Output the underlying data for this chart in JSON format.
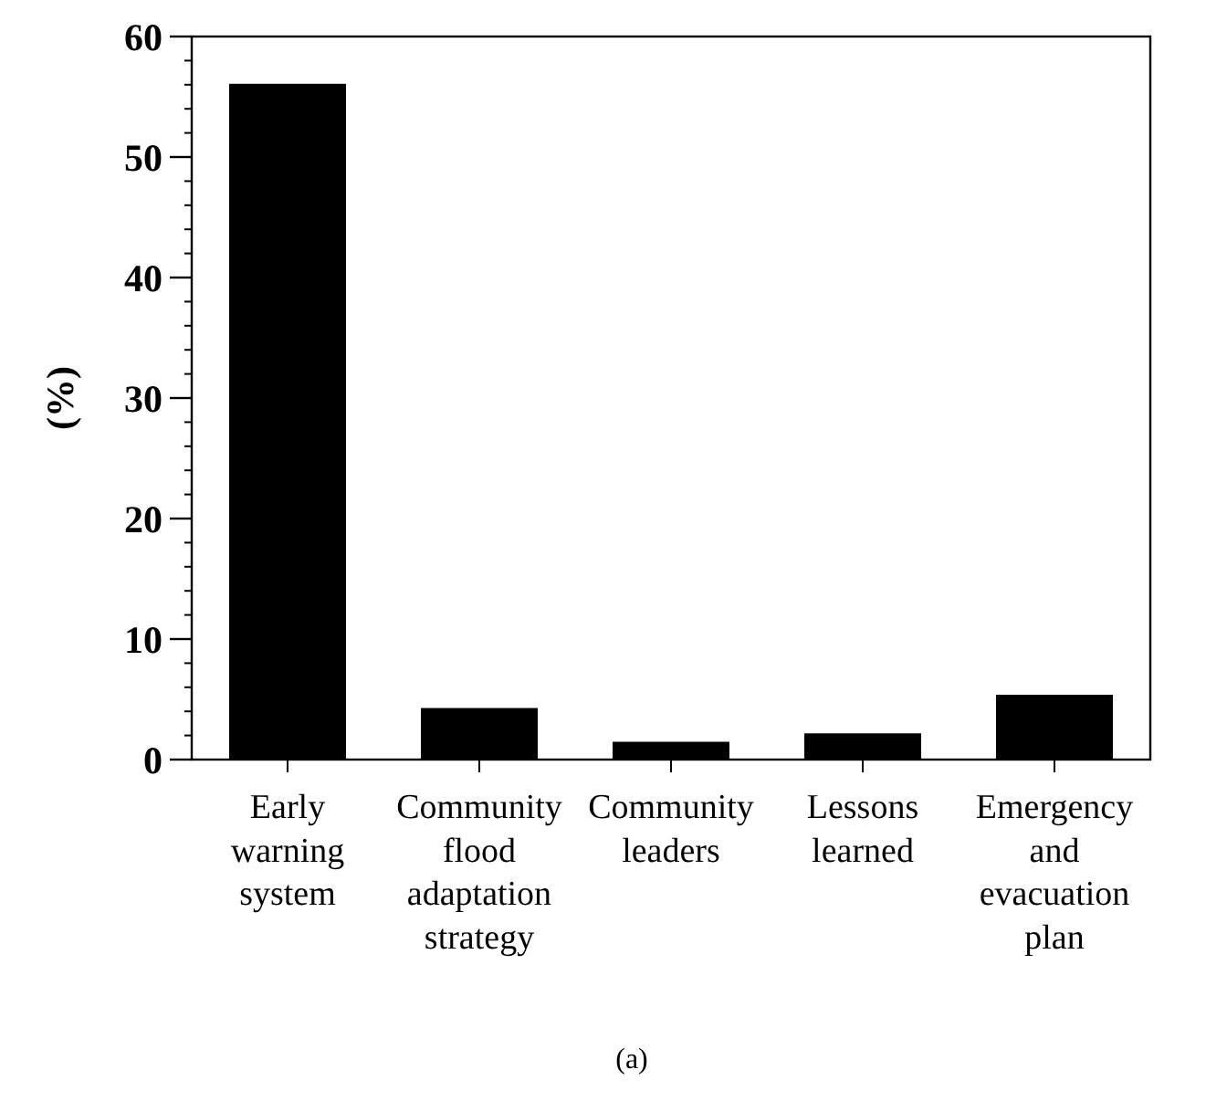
{
  "chart_data": {
    "type": "bar",
    "ylabel": "(%)",
    "categories": [
      "Early warning system",
      "Community flood adaptation strategy",
      "Community leaders",
      "Lessons learned",
      "Emergency and evacuation plan"
    ],
    "values": [
      56,
      4.2,
      1.4,
      2.1,
      5.3
    ],
    "color": "#000000",
    "ylim": [
      0,
      60
    ],
    "yticks": [
      0,
      10,
      20,
      30,
      40,
      50,
      60
    ],
    "grid": false,
    "annotations": [
      "(a)"
    ]
  }
}
